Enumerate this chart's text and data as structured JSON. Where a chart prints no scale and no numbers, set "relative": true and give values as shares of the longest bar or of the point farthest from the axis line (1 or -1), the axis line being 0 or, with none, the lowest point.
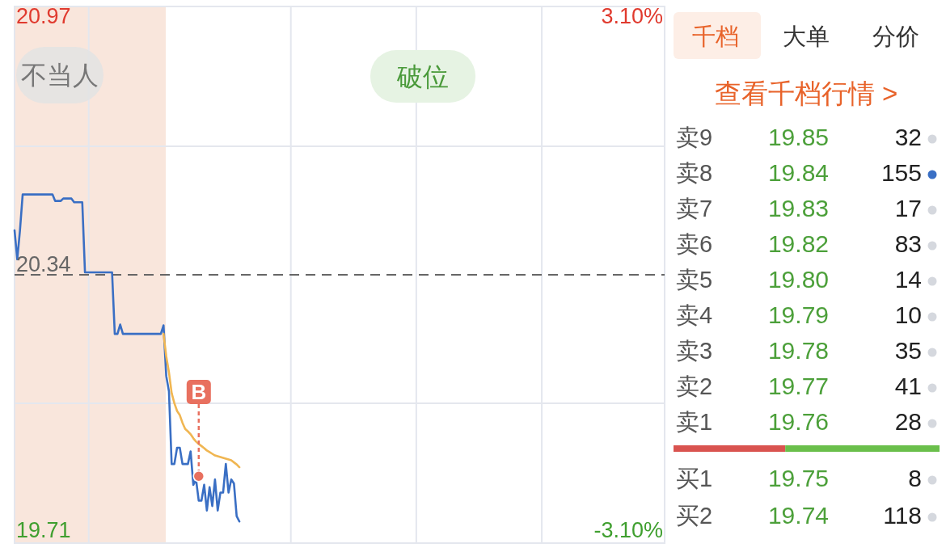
{
  "chart_data": [
    {
      "type": "line",
      "categories": [
        null,
        null,
        null,
        null,
        null,
        null,
        null,
        null,
        null,
        null,
        null,
        null,
        null,
        null,
        null,
        null,
        null,
        null,
        null,
        null,
        null,
        null,
        null,
        null,
        null,
        null,
        null,
        null,
        null,
        null,
        null,
        null,
        null,
        null,
        null,
        null,
        null,
        null,
        null,
        null,
        null,
        null,
        null,
        null,
        null,
        null,
        null,
        null,
        null,
        null,
        null,
        null,
        null,
        null,
        null,
        null,
        null,
        null,
        null,
        null,
        null,
        null,
        null,
        null,
        null,
        null,
        null,
        null,
        null,
        null,
        null,
        null,
        null,
        null,
        null,
        null,
        null,
        null,
        null,
        null,
        null,
        null,
        null,
        null,
        null,
        null,
        null,
        null,
        null,
        null,
        null,
        null,
        null,
        null,
        null,
        null,
        null,
        null,
        null,
        null,
        null,
        null,
        null,
        null,
        null,
        null,
        null,
        null,
        null,
        null,
        null,
        null,
        null,
        null,
        null,
        null,
        null,
        null,
        null,
        null,
        null,
        null,
        null,
        null,
        null,
        null,
        null,
        null,
        null,
        null,
        null,
        null,
        null,
        null,
        null,
        null,
        null,
        null,
        null,
        null,
        null,
        null,
        null,
        null,
        null,
        null,
        null,
        null,
        null,
        null,
        null,
        null,
        null,
        null,
        null,
        null,
        null,
        null,
        null,
        null,
        null,
        null,
        null,
        null,
        null,
        null,
        null,
        null,
        null,
        null,
        null,
        null,
        null,
        null,
        null,
        null,
        null,
        null,
        null,
        null,
        null,
        null,
        null,
        null,
        null,
        null,
        null,
        null,
        null,
        null,
        null,
        null,
        null,
        null,
        null,
        null,
        null,
        null,
        null,
        null,
        null,
        null,
        null,
        null,
        null,
        null,
        null,
        null,
        null,
        null,
        null,
        null,
        null,
        null,
        null,
        null,
        null,
        null,
        null,
        null,
        null,
        null,
        null,
        null,
        null,
        null,
        null,
        null,
        null,
        null,
        null,
        null,
        null,
        null,
        null,
        null,
        null,
        null,
        null,
        null,
        null
      ],
      "series": [
        {
          "color": "#3a6fc4",
          "values": [
            20.449,
            20.378,
            20.449,
            20.537,
            20.537,
            20.537,
            20.537,
            20.537,
            20.537,
            20.537,
            20.537,
            20.537,
            20.537,
            20.537,
            20.537,
            20.521,
            20.521,
            20.521,
            20.527,
            20.527,
            20.527,
            20.527,
            20.518,
            20.518,
            20.518,
            20.518,
            20.346,
            20.346,
            20.346,
            20.346,
            20.346,
            20.346,
            20.346,
            20.346,
            20.346,
            20.346,
            20.346,
            20.195,
            20.195,
            20.218,
            20.195,
            20.195,
            20.195,
            20.195,
            20.195,
            20.195,
            20.195,
            20.195,
            20.195,
            20.195,
            20.195,
            20.195,
            20.195,
            20.195,
            20.195,
            20.216,
            20.092,
            20.054,
            19.876,
            19.876,
            19.916,
            19.916,
            19.876,
            19.876,
            19.876,
            19.907,
            19.825,
            19.838,
            19.786,
            19.786,
            19.825,
            19.762,
            19.819,
            19.773,
            19.838,
            19.762,
            19.806,
            19.806,
            19.876,
            19.806,
            19.838,
            19.828,
            19.748,
            19.735,
            null,
            null,
            null,
            null,
            null,
            null,
            null,
            null,
            null,
            null,
            null,
            null,
            null,
            null,
            null,
            null,
            null,
            null,
            null,
            null,
            null,
            null,
            null,
            null,
            null,
            null,
            null,
            null,
            null,
            null,
            null,
            null,
            null,
            null,
            null,
            null,
            null,
            null,
            null,
            null,
            null,
            null,
            null,
            null,
            null,
            null,
            null,
            null,
            null,
            null,
            null,
            null,
            null,
            null,
            null,
            null,
            null,
            null,
            null,
            null,
            null,
            null,
            null,
            null,
            null,
            null,
            null,
            null,
            null,
            null,
            null,
            null,
            null,
            null,
            null,
            null,
            null,
            null,
            null,
            null,
            null,
            null,
            null,
            null,
            null,
            null,
            null,
            null,
            null,
            null,
            null,
            null,
            null,
            null,
            null,
            null,
            null,
            null,
            null,
            null,
            null,
            null,
            null,
            null,
            null,
            null,
            null,
            null,
            null,
            null,
            null,
            null,
            null,
            null,
            null,
            null,
            null,
            null,
            null,
            null,
            null,
            null,
            null,
            null,
            null,
            null,
            null,
            null,
            null,
            null,
            null,
            null,
            null,
            null,
            null,
            null,
            null,
            null,
            null,
            null,
            null,
            null,
            null,
            null,
            null,
            null,
            null,
            null,
            null,
            null,
            null,
            null,
            null,
            null,
            null,
            null,
            null
          ]
        },
        {
          "color": "#f0b652",
          "values": [
            null,
            null,
            null,
            null,
            null,
            null,
            null,
            null,
            null,
            null,
            null,
            null,
            null,
            null,
            null,
            null,
            null,
            null,
            null,
            null,
            null,
            null,
            null,
            null,
            null,
            null,
            null,
            null,
            null,
            null,
            null,
            null,
            null,
            null,
            null,
            null,
            null,
            null,
            null,
            null,
            null,
            null,
            null,
            null,
            null,
            null,
            null,
            null,
            null,
            null,
            null,
            null,
            null,
            null,
            null,
            20.195,
            20.14,
            20.101,
            20.05,
            20.025,
            20.006,
            19.996,
            19.977,
            19.962,
            19.956,
            19.949,
            19.939,
            19.931,
            19.925,
            19.92,
            19.915,
            19.909,
            19.905,
            19.901,
            19.897,
            19.895,
            19.893,
            19.891,
            19.889,
            19.887,
            19.885,
            19.88,
            19.875,
            19.868,
            null,
            null,
            null,
            null,
            null,
            null,
            null,
            null,
            null,
            null,
            null,
            null,
            null,
            null,
            null,
            null,
            null,
            null,
            null,
            null,
            null,
            null,
            null,
            null,
            null,
            null,
            null,
            null,
            null,
            null,
            null,
            null,
            null,
            null,
            null,
            null,
            null,
            null,
            null,
            null,
            null,
            null,
            null,
            null,
            null,
            null,
            null,
            null,
            null,
            null,
            null,
            null,
            null,
            null,
            null,
            null,
            null,
            null,
            null,
            null,
            null,
            null,
            null,
            null,
            null,
            null,
            null,
            null,
            null,
            null,
            null,
            null,
            null,
            null,
            null,
            null,
            null,
            null,
            null,
            null,
            null,
            null,
            null,
            null,
            null,
            null,
            null,
            null,
            null,
            null,
            null,
            null,
            null,
            null,
            null,
            null,
            null,
            null,
            null,
            null,
            null,
            null,
            null,
            null,
            null,
            null,
            null,
            null,
            null,
            null,
            null,
            null,
            null,
            null,
            null,
            null,
            null,
            null,
            null,
            null,
            null,
            null,
            null,
            null,
            null,
            null,
            null,
            null,
            null,
            null,
            null,
            null,
            null,
            null,
            null,
            null,
            null,
            null,
            null,
            null,
            null,
            null,
            null,
            null,
            null,
            null,
            null,
            null,
            null,
            null,
            null,
            null,
            null,
            null,
            null,
            null,
            null
          ]
        },
        {
          "type": "scatter",
          "color": "#e8705f",
          "values": [
            null,
            null,
            null,
            null,
            null,
            null,
            null,
            null,
            null,
            null,
            null,
            null,
            null,
            null,
            null,
            null,
            null,
            null,
            null,
            null,
            null,
            null,
            null,
            null,
            null,
            null,
            null,
            null,
            null,
            null,
            null,
            null,
            null,
            null,
            null,
            null,
            null,
            null,
            null,
            null,
            null,
            null,
            null,
            null,
            null,
            null,
            null,
            null,
            null,
            null,
            null,
            null,
            null,
            null,
            null,
            null,
            null,
            null,
            null,
            null,
            null,
            null,
            null,
            null,
            null,
            null,
            null,
            null,
            19.846,
            null,
            null,
            null,
            null,
            null,
            null,
            null,
            null,
            null,
            null,
            null,
            null,
            null,
            null,
            null,
            null,
            null,
            null,
            null,
            null,
            null,
            null,
            null,
            null,
            null,
            null,
            null,
            null,
            null,
            null,
            null,
            null,
            null,
            null,
            null,
            null,
            null,
            null,
            null,
            null,
            null,
            null,
            null,
            null,
            null,
            null,
            null,
            null,
            null,
            null,
            null,
            null,
            null,
            null,
            null,
            null,
            null,
            null,
            null,
            null,
            null,
            null,
            null,
            null,
            null,
            null,
            null,
            null,
            null,
            null,
            null,
            null,
            null,
            null,
            null,
            null,
            null,
            null,
            null,
            null,
            null,
            null,
            null,
            null,
            null,
            null,
            null,
            null,
            null,
            null,
            null,
            null,
            null,
            null,
            null,
            null,
            null,
            null,
            null,
            null,
            null,
            null,
            null,
            null,
            null,
            null,
            null,
            null,
            null,
            null,
            null,
            null,
            null,
            null,
            null,
            null,
            null,
            null,
            null,
            null,
            null,
            null,
            null,
            null,
            null,
            null,
            null,
            null,
            null,
            null,
            null,
            null,
            null,
            null,
            null,
            null,
            null,
            null,
            null,
            null,
            null,
            null,
            null,
            null,
            null,
            null,
            null,
            null,
            null,
            null,
            null,
            null,
            null,
            null,
            null,
            null,
            null,
            null,
            null,
            null,
            null,
            null,
            null,
            null,
            null,
            null,
            null,
            null,
            null,
            null,
            null,
            null
          ]
        }
      ],
      "ylim": [
        19.682,
        20.998
      ],
      "yticks": [
        19.71,
        {
          "value": 20.025,
          "label": null
        },
        20.34,
        {
          "value": 20.655,
          "label": null
        },
        20.97
      ],
      "y2lim": [
        -3.24,
        3.24
      ],
      "y2ticks": [
        {
          "value": -3.1,
          "label": "-3.10%"
        },
        {
          "value": 3.1,
          "label": "3.10%"
        }
      ],
      "grid": true,
      "ref_lines": [
        {
          "axis": "y",
          "value": 20.34,
          "color": "#666666",
          "line_style": "dashed"
        }
      ],
      "annotations": [
        "不当人",
        "破位",
        "B"
      ]
    },
    {
      "type": "other",
      "data_labels": true,
      "annotations": [
        "千档",
        "大单",
        "分价",
        "查看千档行情 >"
      ],
      "categories": [
        "卖9",
        "卖8",
        "卖7",
        "卖6",
        "卖5",
        "卖4",
        "卖3",
        "卖2",
        "卖1",
        "买1",
        "买2"
      ],
      "series": [
        {
          "color": "#4ca03a",
          "values": [
            19.85,
            19.84,
            19.83,
            19.82,
            19.8,
            19.79,
            19.78,
            19.77,
            19.76,
            19.75,
            19.74
          ],
          "value_labels": [
            "19.85",
            "19.84",
            "19.83",
            "19.82",
            "19.80",
            "19.79",
            "19.78",
            "19.77",
            "19.76",
            "19.75",
            "19.74"
          ]
        },
        {
          "color": "#222222",
          "values": [
            32,
            155,
            17,
            83,
            14,
            10,
            35,
            41,
            28,
            8,
            118
          ],
          "colors": [
            "#d5d8de",
            "#3a6fc4",
            "#d5d8de",
            "#d5d8de",
            "#d5d8de",
            "#d5d8de",
            "#d5d8de",
            "#d5d8de",
            "#d5d8de",
            "#d5d8de",
            "#d5d8de"
          ]
        }
      ]
    },
    {
      "type": "bar",
      "orientation": "horizontal",
      "stacked": true,
      "relative": true,
      "categories": [
        null
      ],
      "series": [
        {
          "color": "#d9534f",
          "values": [
            0.42
          ]
        },
        {
          "color": "#6abf4b",
          "values": [
            0.58
          ]
        }
      ]
    }
  ]
}
